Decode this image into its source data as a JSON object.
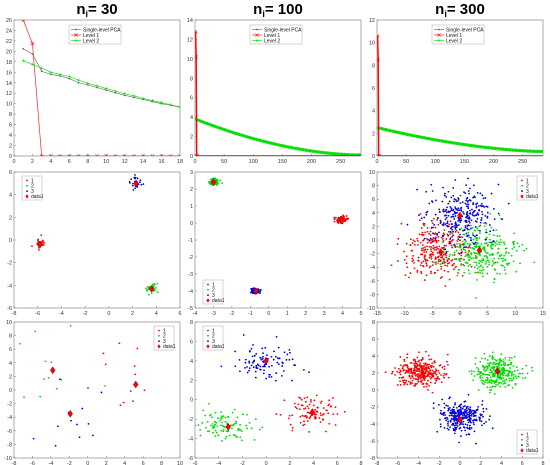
{
  "columns": [
    {
      "title_main": "n",
      "title_sub": "i",
      "title_rest": "= 30"
    },
    {
      "title_main": "n",
      "title_sub": "i",
      "title_rest": "= 100"
    },
    {
      "title_main": "n",
      "title_sub": "i",
      "title_rest": "= 300"
    }
  ],
  "colors": {
    "level1": "#ff0000",
    "level2": "#00dd00",
    "single": "#666666",
    "c1": "#ff0000",
    "c2": "#00dd00",
    "c3": "#0000dd",
    "data1": "#ff0000"
  },
  "chart_data": [
    {
      "type": "line",
      "row": 0,
      "col": 0,
      "xlim": [
        0,
        18
      ],
      "ylim": [
        0,
        26
      ],
      "xticks": [
        0,
        2,
        4,
        6,
        8,
        10,
        12,
        14,
        16,
        18
      ],
      "yticks": [
        0,
        2,
        4,
        6,
        8,
        10,
        12,
        14,
        16,
        18,
        20,
        22,
        24,
        26
      ],
      "legend": [
        "Single-level PCA",
        "Level 1",
        "Level 2"
      ],
      "series": [
        {
          "name": "Single-level PCA",
          "x": [
            1,
            2,
            3,
            4,
            5,
            6,
            7,
            8,
            9,
            10,
            11,
            12,
            13,
            14,
            15,
            16,
            17,
            18
          ],
          "values": [
            20.5,
            19.5,
            16.2,
            15.6,
            15.3,
            14.8,
            14.0,
            13.6,
            13.1,
            12.6,
            12.1,
            11.6,
            11.2,
            10.8,
            10.4,
            10.0,
            9.7,
            9.3
          ]
        },
        {
          "name": "Level 1",
          "x": [
            1,
            2,
            3,
            4,
            5,
            6,
            7,
            8,
            9,
            10,
            11,
            12,
            13,
            14,
            15,
            16,
            17,
            18
          ],
          "values": [
            26.0,
            21.5,
            0,
            0,
            0,
            0,
            0,
            0,
            0,
            0,
            0,
            0,
            0,
            0,
            0,
            0,
            0,
            0
          ]
        },
        {
          "name": "Level 2",
          "x": [
            1,
            2,
            3,
            4,
            5,
            6,
            7,
            8,
            9,
            10,
            11,
            12,
            13,
            14,
            15,
            16,
            17,
            18
          ],
          "values": [
            18.2,
            17.5,
            16.8,
            16.0,
            15.6,
            15.2,
            14.5,
            13.9,
            13.4,
            12.9,
            12.4,
            11.9,
            11.5,
            11.0,
            10.6,
            10.2,
            9.8,
            9.4
          ]
        }
      ]
    },
    {
      "type": "line",
      "row": 0,
      "col": 1,
      "xlim": [
        0,
        285
      ],
      "ylim": [
        0,
        14
      ],
      "xticks": [
        0,
        50,
        100,
        150,
        200,
        250
      ],
      "yticks": [
        0,
        2,
        4,
        6,
        8,
        10,
        12,
        14
      ],
      "legend": [
        "Single-level PCA",
        "Level 1",
        "Level 2"
      ],
      "curve": {
        "n": 285,
        "level2_start": 3.8,
        "level2_end": 0.1,
        "level1_first": [
          12.8,
          10.2
        ],
        "decay_power": 0.55
      }
    },
    {
      "type": "line",
      "row": 0,
      "col": 2,
      "xlim": [
        0,
        285
      ],
      "ylim": [
        0,
        12
      ],
      "xticks": [
        0,
        50,
        100,
        150,
        200,
        250
      ],
      "yticks": [
        0,
        2,
        4,
        6,
        8,
        10,
        12
      ],
      "legend": [
        "Single-level PCA",
        "Level 1",
        "Level 2"
      ],
      "curve": {
        "n": 285,
        "level2_start": 2.5,
        "level2_end": 0.4,
        "level1_first": [
          10.6,
          8.5
        ],
        "decay_power": 0.6
      }
    },
    {
      "type": "scatter",
      "row": 1,
      "col": 0,
      "xlim": [
        -8,
        6
      ],
      "ylim": [
        -6,
        6
      ],
      "xticks": [
        -8,
        -6,
        -4,
        -2,
        0,
        2,
        4,
        6
      ],
      "yticks": [
        -6,
        -4,
        -2,
        0,
        2,
        4,
        6
      ],
      "legend": [
        "1",
        "2",
        "3",
        "data1"
      ],
      "legend_pos": "top-left",
      "clusters": [
        {
          "name": "1",
          "center": [
            -5.8,
            -0.3
          ],
          "spread": [
            0.25,
            0.25
          ],
          "n": 30
        },
        {
          "name": "2",
          "center": [
            3.6,
            -4.3
          ],
          "spread": [
            0.25,
            0.25
          ],
          "n": 30
        },
        {
          "name": "3",
          "center": [
            2.3,
            5.0
          ],
          "spread": [
            0.25,
            0.25
          ],
          "n": 30
        }
      ],
      "centroids": [
        [
          -5.8,
          -0.4
        ],
        [
          3.6,
          -4.3
        ],
        [
          2.3,
          5.0
        ]
      ]
    },
    {
      "type": "scatter",
      "row": 1,
      "col": 1,
      "xlim": [
        -4,
        5
      ],
      "ylim": [
        -5,
        3
      ],
      "xticks": [
        -4,
        -3,
        -2,
        -1,
        0,
        1,
        2,
        3,
        4,
        5
      ],
      "yticks": [
        -5,
        -4,
        -3,
        -2,
        -1,
        0,
        1,
        2,
        3
      ],
      "legend": [
        "1",
        "2",
        "3",
        "data1"
      ],
      "legend_pos": "bottom-left",
      "clusters": [
        {
          "name": "1",
          "center": [
            3.9,
            0.2
          ],
          "spread": [
            0.15,
            0.1
          ],
          "n": 100
        },
        {
          "name": "2",
          "center": [
            -3.0,
            2.4
          ],
          "spread": [
            0.12,
            0.1
          ],
          "n": 100
        },
        {
          "name": "3",
          "center": [
            -0.7,
            -4.0
          ],
          "spread": [
            0.12,
            0.08
          ],
          "n": 100
        }
      ],
      "centroids": [
        [
          3.9,
          0.2
        ],
        [
          -3.0,
          2.4
        ],
        [
          -0.7,
          -4.0
        ]
      ]
    },
    {
      "type": "scatter",
      "row": 1,
      "col": 2,
      "xlim": [
        -15,
        15
      ],
      "ylim": [
        -10,
        10
      ],
      "xticks": [
        -15,
        -10,
        -5,
        0,
        5,
        10,
        15
      ],
      "yticks": [
        -10,
        -8,
        -6,
        -4,
        -2,
        0,
        2,
        4,
        6,
        8,
        10
      ],
      "legend": [
        "1",
        "2",
        "3",
        "data1"
      ],
      "legend_pos": "top-right",
      "clusters": [
        {
          "name": "1",
          "center": [
            -4.0,
            -1.5
          ],
          "spread": [
            3.2,
            2.0
          ],
          "n": 300
        },
        {
          "name": "2",
          "center": [
            3.5,
            -1.5
          ],
          "spread": [
            3.2,
            2.0
          ],
          "n": 300
        },
        {
          "name": "3",
          "center": [
            0.0,
            3.5
          ],
          "spread": [
            3.0,
            2.0
          ],
          "n": 300
        }
      ],
      "centroids": [
        [
          -3.5,
          -1.8
        ],
        [
          3.5,
          -1.5
        ],
        [
          0.0,
          3.6
        ]
      ]
    },
    {
      "type": "scatter",
      "row": 2,
      "col": 0,
      "xlim": [
        -8,
        10
      ],
      "ylim": [
        -10,
        10
      ],
      "xticks": [
        -8,
        -6,
        -4,
        -2,
        0,
        2,
        4,
        6,
        8,
        10
      ],
      "yticks": [
        -10,
        -8,
        -6,
        -4,
        -2,
        0,
        2,
        4,
        6,
        8,
        10
      ],
      "legend": [
        "1",
        "2",
        "3",
        "data1"
      ],
      "legend_pos": "top-right",
      "clusters": [
        {
          "name": "1",
          "center": [
            5.0,
            1.0
          ],
          "spread": [
            2.0,
            3.5
          ],
          "n": 12
        },
        {
          "name": "2",
          "center": [
            -4.0,
            3.0
          ],
          "spread": [
            2.5,
            3.5
          ],
          "n": 12
        },
        {
          "name": "3",
          "center": [
            -2.0,
            -4.0
          ],
          "spread": [
            2.5,
            3.0
          ],
          "n": 12
        }
      ],
      "centroids": [
        [
          5.2,
          0.8
        ],
        [
          -3.8,
          2.9
        ],
        [
          -1.9,
          -3.5
        ]
      ]
    },
    {
      "type": "scatter",
      "row": 2,
      "col": 1,
      "xlim": [
        -6,
        8
      ],
      "ylim": [
        -6,
        8
      ],
      "xticks": [
        -6,
        -4,
        -2,
        0,
        2,
        4,
        6,
        8
      ],
      "yticks": [
        -6,
        -4,
        -2,
        0,
        2,
        4,
        6,
        8
      ],
      "legend": [
        "1",
        "2",
        "3",
        "data1"
      ],
      "legend_pos": "top-left",
      "clusters": [
        {
          "name": "1",
          "center": [
            3.8,
            -1.3
          ],
          "spread": [
            1.1,
            0.8
          ],
          "n": 100
        },
        {
          "name": "2",
          "center": [
            -3.3,
            -2.6
          ],
          "spread": [
            1.0,
            0.8
          ],
          "n": 100
        },
        {
          "name": "3",
          "center": [
            0.0,
            3.8
          ],
          "spread": [
            1.2,
            0.9
          ],
          "n": 100
        }
      ],
      "centroids": [
        [
          3.9,
          -1.3
        ],
        [
          -3.2,
          -2.8
        ],
        [
          0.0,
          4.0
        ]
      ]
    },
    {
      "type": "scatter",
      "row": 2,
      "col": 2,
      "xlim": [
        -8,
        8
      ],
      "ylim": [
        -8,
        8
      ],
      "xticks": [
        -8,
        -6,
        -4,
        -2,
        0,
        2,
        4,
        6,
        8
      ],
      "yticks": [
        -8,
        -6,
        -4,
        -2,
        0,
        2,
        4,
        6,
        8
      ],
      "legend": [
        "1",
        "2",
        "3",
        "data1"
      ],
      "legend_pos": "bottom-right",
      "clusters": [
        {
          "name": "1",
          "center": [
            -3.8,
            2.0
          ],
          "spread": [
            1.1,
            0.9
          ],
          "n": 300
        },
        {
          "name": "2",
          "center": [
            3.6,
            2.0
          ],
          "spread": [
            1.1,
            0.9
          ],
          "n": 300
        },
        {
          "name": "3",
          "center": [
            0.0,
            -3.2
          ],
          "spread": [
            1.1,
            0.9
          ],
          "n": 300
        }
      ],
      "centroids": [
        [
          -3.6,
          2.0
        ],
        [
          3.6,
          2.2
        ],
        [
          0.0,
          -3.5
        ]
      ]
    }
  ]
}
